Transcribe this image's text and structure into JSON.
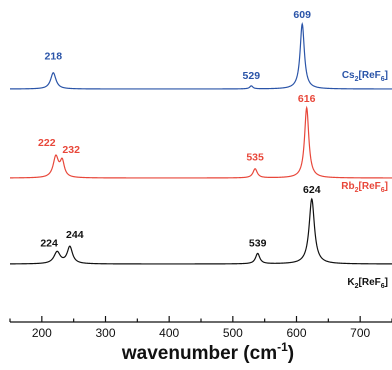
{
  "chart_data": {
    "type": "line",
    "xlabel": "wavenumber (cm",
    "xlabel_sup": "-1",
    "xlabel_close": ")",
    "xlim": [
      150,
      750
    ],
    "xticks": [
      200,
      300,
      400,
      500,
      600,
      700
    ],
    "x_tick_labels": [
      "200",
      "300",
      "400",
      "500",
      "600",
      "700"
    ],
    "grid": false,
    "legend": "per-series label at right end of each trace",
    "series": [
      {
        "name": "Cs2[ReF6]",
        "label_parts": [
          "Cs",
          "2",
          "[ReF",
          "6",
          "]"
        ],
        "color": "#2a54a8",
        "peaks": [
          {
            "x": 218,
            "height": 0.65,
            "width": 5,
            "label": "218"
          },
          {
            "x": 529,
            "height": 0.12,
            "width": 3,
            "label": "529"
          },
          {
            "x": 609,
            "height": 2.6,
            "width": 4,
            "label": "609"
          }
        ]
      },
      {
        "name": "Rb2[ReF6]",
        "label_parts": [
          "Rb",
          "2",
          "[ReF",
          "6",
          "]"
        ],
        "color": "#e8473a",
        "peaks": [
          {
            "x": 222,
            "height": 0.8,
            "width": 5,
            "label": "222"
          },
          {
            "x": 232,
            "height": 0.6,
            "width": 4,
            "label": "232"
          },
          {
            "x": 535,
            "height": 0.35,
            "width": 4,
            "label": "535"
          },
          {
            "x": 616,
            "height": 2.7,
            "width": 4,
            "label": "616"
          }
        ]
      },
      {
        "name": "K2[ReF6]",
        "label_parts": [
          "K",
          "2",
          "[ReF",
          "6",
          "]"
        ],
        "color": "#111111",
        "peaks": [
          {
            "x": 224,
            "height": 0.45,
            "width": 6,
            "label": "224"
          },
          {
            "x": 244,
            "height": 0.65,
            "width": 5,
            "label": "244"
          },
          {
            "x": 539,
            "height": 0.4,
            "width": 4,
            "label": "539"
          },
          {
            "x": 624,
            "height": 2.5,
            "width": 5,
            "label": "624"
          }
        ]
      }
    ]
  }
}
